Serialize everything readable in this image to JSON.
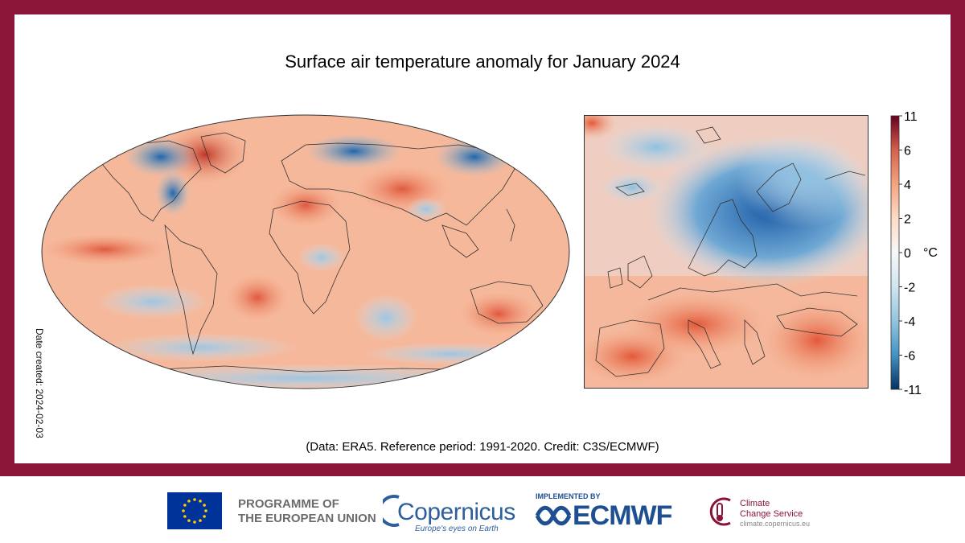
{
  "title": "Surface air temperature anomaly for January 2024",
  "credit": "(Data: ERA5. Reference period: 1991-2020. Credit: C3S/ECMWF)",
  "date_created": "Date created: 2024-02-03",
  "colorbar": {
    "unit": "°C",
    "ticks": [
      "11",
      "6",
      "4",
      "2",
      "0",
      "-2",
      "-4",
      "-6",
      "-11"
    ],
    "colors": [
      "#67001f",
      "#d6604d",
      "#f4a582",
      "#fddbc7",
      "#f7f7f7",
      "#d1e5f0",
      "#92c5de",
      "#4393c3",
      "#053061"
    ]
  },
  "footer": {
    "eu_programme": [
      "PROGRAMME OF",
      "THE EUROPEAN UNION"
    ],
    "copernicus": "Copernicus",
    "copernicus_tagline": "Europe's eyes on Earth",
    "implemented_by": "IMPLEMENTED BY",
    "ecmwf": "ECMWF",
    "c3s": [
      "Climate",
      "Change Service"
    ],
    "c3s_url": "climate.copernicus.eu"
  }
}
